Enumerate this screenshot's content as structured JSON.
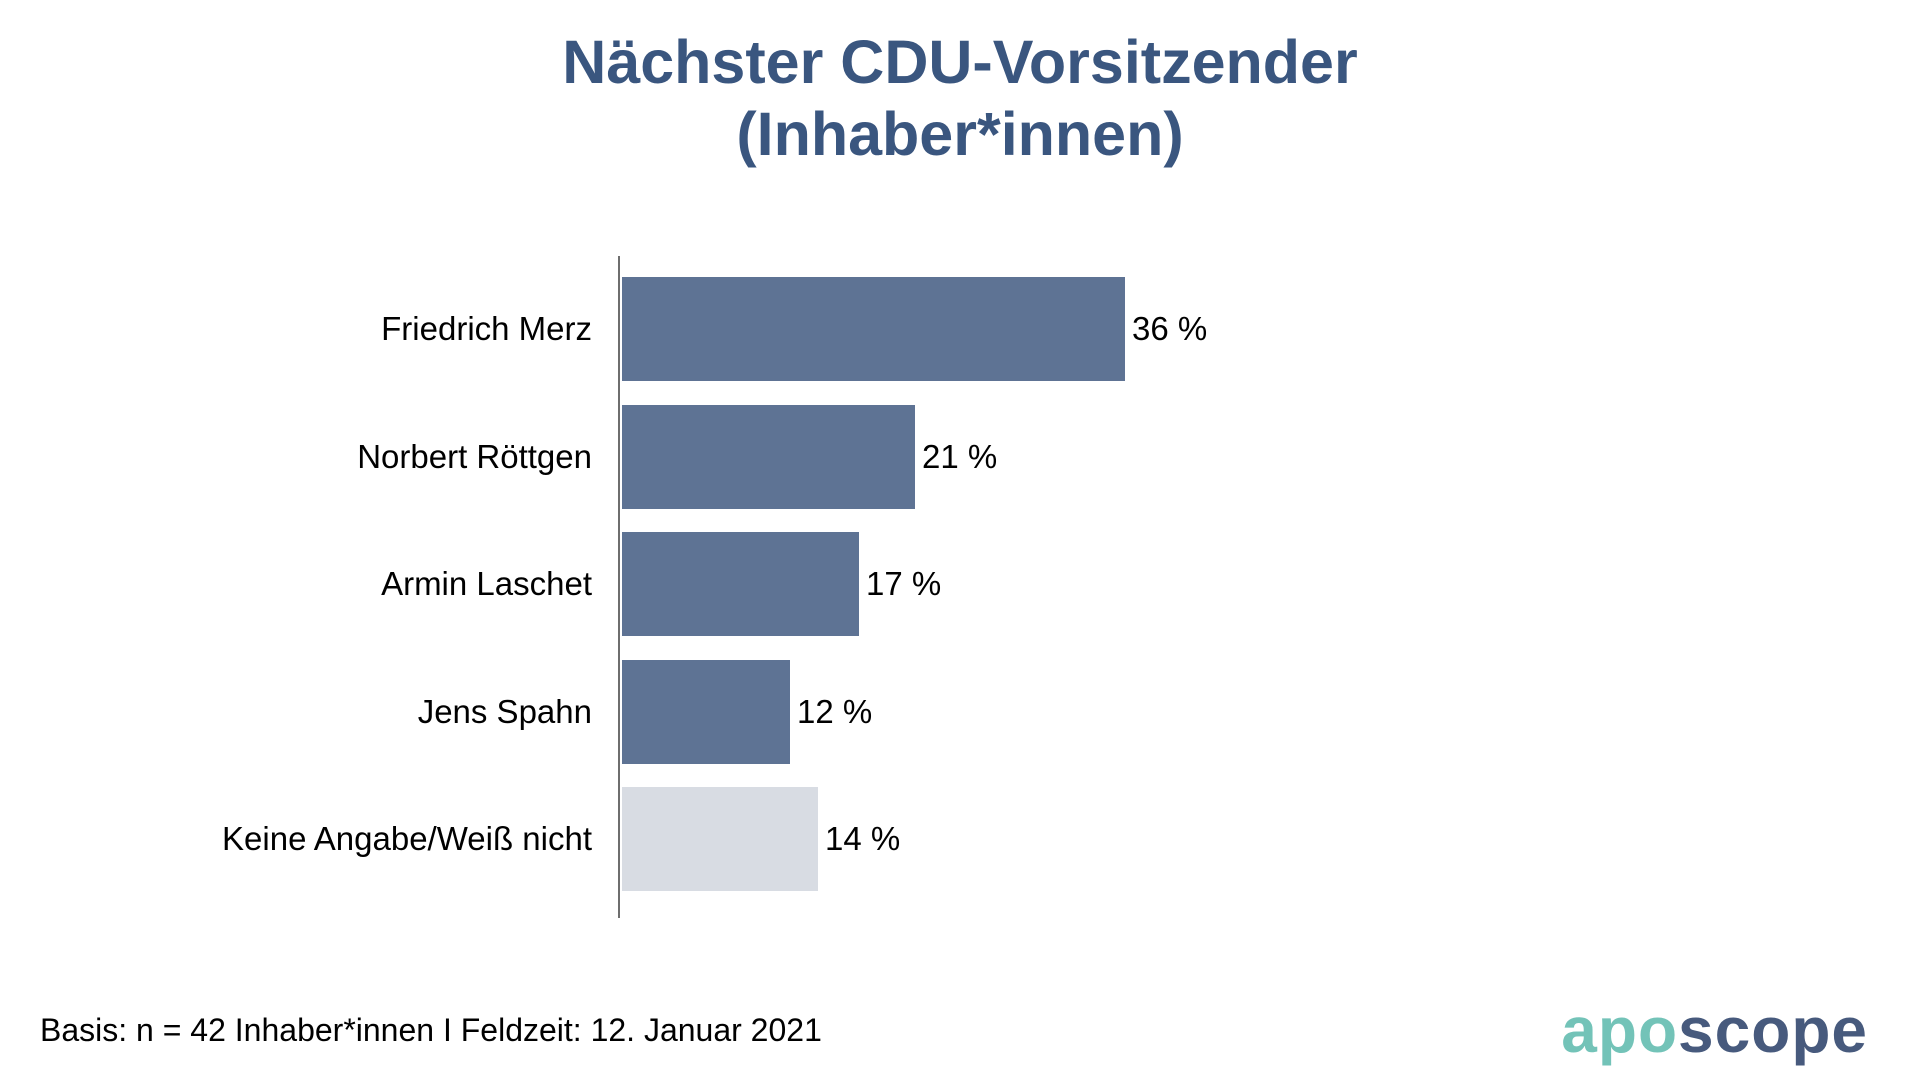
{
  "title": {
    "line1": "Nächster CDU-Vorsitzender",
    "line2": "(Inhaber*innen)"
  },
  "chart_data": {
    "type": "bar",
    "orientation": "horizontal",
    "title": "Nächster CDU-Vorsitzender (Inhaber*innen)",
    "categories": [
      "Friedrich Merz",
      "Norbert Röttgen",
      "Armin Laschet",
      "Jens Spahn",
      "Keine Angabe/Weiß nicht"
    ],
    "values": [
      36,
      21,
      17,
      12,
      14
    ],
    "value_suffix": " %",
    "value_labels": [
      "36 %",
      "21 %",
      "17 %",
      "12 %",
      "14 %"
    ],
    "xlim": [
      0,
      36
    ],
    "grid": false,
    "legend": false,
    "bar_colors": [
      "#5e7394",
      "#5e7394",
      "#5e7394",
      "#5e7394",
      "#d8dce3"
    ],
    "colors": {
      "bar_primary": "#5e7394",
      "bar_no_answer": "#d8dce3",
      "axis": "#6e6e6e",
      "title_text": "#3a567f",
      "label_text": "#000000"
    }
  },
  "footer": {
    "basis": "Basis: n = 42 Inhaber*innen I Feldzeit: 12. Januar 2021"
  },
  "logo": {
    "part1": "apo",
    "part2": "scope",
    "color1": "#73c3b8",
    "color2": "#475a7d"
  }
}
